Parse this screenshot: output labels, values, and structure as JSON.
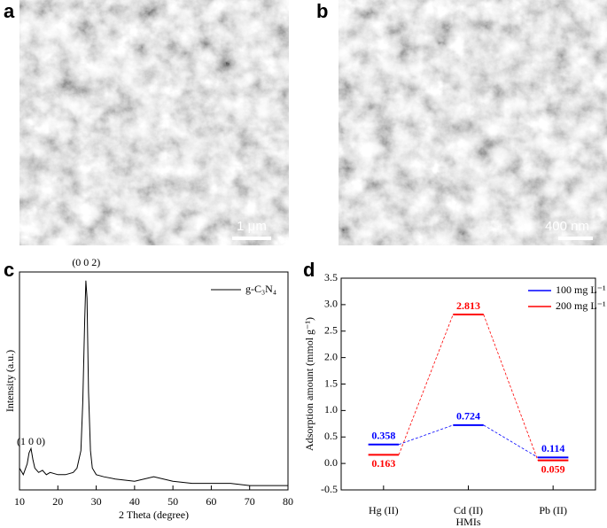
{
  "images": [
    {
      "label": "a",
      "scale_bar": "1 μm"
    },
    {
      "label": "b",
      "scale_bar": "400 nm"
    }
  ],
  "chart_data": [
    {
      "type": "line",
      "label": "c",
      "x_label": "2 Theta (degree)",
      "y_label": "Intensity (a.u.)",
      "annotations": [
        "(1 0 0)",
        "(0 0 2)"
      ],
      "x": [
        10,
        11,
        12,
        12.5,
        13,
        13.5,
        14,
        15,
        16,
        17,
        18,
        20,
        22,
        24,
        25,
        26,
        26.5,
        27,
        27.3,
        27.6,
        28,
        28.5,
        29,
        30,
        32,
        35,
        40,
        45,
        50,
        55,
        60,
        65,
        70,
        75,
        80
      ],
      "series": [
        {
          "name": "g-C₃N₄",
          "color": "#000000",
          "values": [
            10,
            7,
            12,
            17,
            19,
            14,
            10,
            8,
            9,
            7,
            8,
            7,
            7,
            8,
            10,
            18,
            40,
            78,
            96,
            88,
            45,
            18,
            10,
            7,
            6,
            5,
            4,
            6,
            4,
            3,
            3,
            3,
            2,
            2,
            2
          ]
        }
      ],
      "xlim": [
        10,
        80
      ],
      "xticks": [
        10,
        20,
        30,
        40,
        50,
        60,
        70,
        80
      ],
      "ylim": [
        0,
        100
      ],
      "legend": "upper right"
    },
    {
      "type": "level",
      "label": "d",
      "x_label": "HMIs",
      "y_label": "Adsorption amount (mmol g⁻¹)",
      "categories": [
        "Hg (II)",
        "Cd (II)",
        "Pb (II)"
      ],
      "series": [
        {
          "name": "100 mg L⁻¹",
          "color": "#0000ff",
          "values": [
            0.358,
            0.724,
            0.114
          ]
        },
        {
          "name": "200 mg L⁻¹",
          "color": "#ff0000",
          "values": [
            0.163,
            2.813,
            0.059
          ]
        }
      ],
      "ylim": [
        -0.5,
        3.5
      ],
      "yticks": [
        -0.5,
        {
          "value": 0,
          "label": "0.0"
        },
        0.5,
        {
          "value": 1,
          "label": "1.0"
        },
        1.5,
        {
          "value": 2,
          "label": "2.0"
        },
        2.5,
        {
          "value": 3,
          "label": "3.0"
        },
        3.5
      ],
      "legend": "upper right"
    }
  ]
}
